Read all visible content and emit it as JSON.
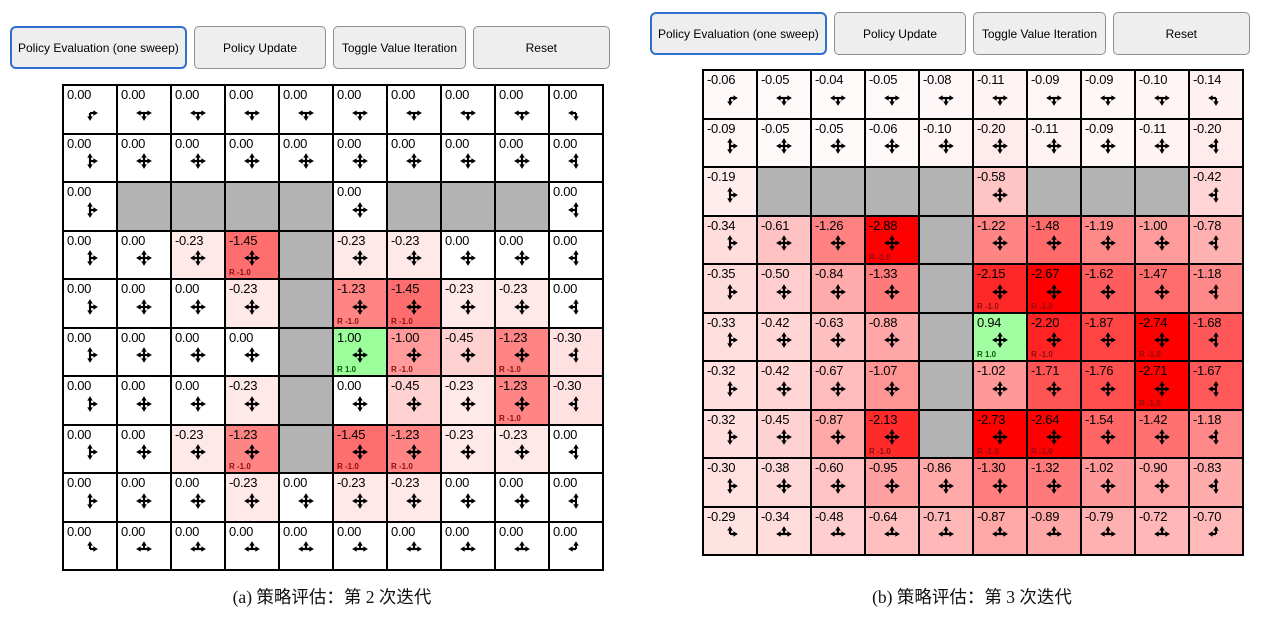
{
  "toolbar": {
    "buttons": [
      "Policy Evaluation (one sweep)",
      "Policy Update",
      "Toggle Value Iteration",
      "Reset"
    ],
    "active_index": 0
  },
  "colors": {
    "active_button_border": "#2e6fd0",
    "button_bg": "#eeeeee",
    "button_border": "#8f8f8f",
    "wall": "#b3b3b3",
    "grid_line": "#000000",
    "reward_negative_text": "#8b0e0e",
    "reward_positive_text": "#0e5a0e",
    "value_color_scale": 100
  },
  "panels": [
    {
      "caption": "(a) 策略评估：第 2 次迭代",
      "grid": {
        "rows": 10,
        "cols": 10,
        "cells": [
          [
            [
              "0.00",
              "rd"
            ],
            [
              "0.00",
              "lrd"
            ],
            [
              "0.00",
              "lrd"
            ],
            [
              "0.00",
              "lrd"
            ],
            [
              "0.00",
              "lrd"
            ],
            [
              "0.00",
              "lrd"
            ],
            [
              "0.00",
              "lrd"
            ],
            [
              "0.00",
              "lrd"
            ],
            [
              "0.00",
              "lrd"
            ],
            [
              "0.00",
              "ld"
            ]
          ],
          [
            [
              "0.00",
              "urd"
            ],
            [
              "0.00",
              "ulrd"
            ],
            [
              "0.00",
              "ulrd"
            ],
            [
              "0.00",
              "ulrd"
            ],
            [
              "0.00",
              "ulrd"
            ],
            [
              "0.00",
              "ulrd"
            ],
            [
              "0.00",
              "ulrd"
            ],
            [
              "0.00",
              "ulrd"
            ],
            [
              "0.00",
              "ulrd"
            ],
            [
              "0.00",
              "uld"
            ]
          ],
          [
            [
              "0.00",
              "urd"
            ],
            null,
            null,
            null,
            null,
            [
              "0.00",
              "ulrd"
            ],
            null,
            null,
            null,
            [
              "0.00",
              "uld"
            ]
          ],
          [
            [
              "0.00",
              "urd"
            ],
            [
              "0.00",
              "ulrd"
            ],
            [
              "-0.23",
              "ulrd"
            ],
            [
              "-1.45",
              "ulrd",
              "R -1.0"
            ],
            null,
            [
              "-0.23",
              "ulrd"
            ],
            [
              "-0.23",
              "ulrd"
            ],
            [
              "0.00",
              "ulrd"
            ],
            [
              "0.00",
              "ulrd"
            ],
            [
              "0.00",
              "uld"
            ]
          ],
          [
            [
              "0.00",
              "urd"
            ],
            [
              "0.00",
              "ulrd"
            ],
            [
              "0.00",
              "ulrd"
            ],
            [
              "-0.23",
              "ulrd"
            ],
            null,
            [
              "-1.23",
              "ulrd",
              "R -1.0"
            ],
            [
              "-1.45",
              "ulrd",
              "R -1.0"
            ],
            [
              "-0.23",
              "ulrd"
            ],
            [
              "-0.23",
              "ulrd"
            ],
            [
              "0.00",
              "uld"
            ]
          ],
          [
            [
              "0.00",
              "urd"
            ],
            [
              "0.00",
              "ulrd"
            ],
            [
              "0.00",
              "ulrd"
            ],
            [
              "0.00",
              "ulrd"
            ],
            null,
            [
              "1.00",
              "ulrd",
              "R 1.0"
            ],
            [
              "-1.00",
              "ulrd",
              "R -1.0"
            ],
            [
              "-0.45",
              "ulrd"
            ],
            [
              "-1.23",
              "ulrd",
              "R -1.0"
            ],
            [
              "-0.30",
              "uld"
            ]
          ],
          [
            [
              "0.00",
              "urd"
            ],
            [
              "0.00",
              "ulrd"
            ],
            [
              "0.00",
              "ulrd"
            ],
            [
              "-0.23",
              "ulrd"
            ],
            null,
            [
              "0.00",
              "ulrd"
            ],
            [
              "-0.45",
              "ulrd"
            ],
            [
              "-0.23",
              "ulrd"
            ],
            [
              "-1.23",
              "ulrd",
              "R -1.0"
            ],
            [
              "-0.30",
              "uld"
            ]
          ],
          [
            [
              "0.00",
              "urd"
            ],
            [
              "0.00",
              "ulrd"
            ],
            [
              "-0.23",
              "ulrd"
            ],
            [
              "-1.23",
              "ulrd",
              "R -1.0"
            ],
            null,
            [
              "-1.45",
              "ulrd",
              "R -1.0"
            ],
            [
              "-1.23",
              "ulrd",
              "R -1.0"
            ],
            [
              "-0.23",
              "ulrd"
            ],
            [
              "-0.23",
              "ulrd"
            ],
            [
              "0.00",
              "uld"
            ]
          ],
          [
            [
              "0.00",
              "urd"
            ],
            [
              "0.00",
              "ulrd"
            ],
            [
              "0.00",
              "ulrd"
            ],
            [
              "-0.23",
              "ulrd"
            ],
            [
              "0.00",
              "ulrd"
            ],
            [
              "-0.23",
              "ulrd"
            ],
            [
              "-0.23",
              "ulrd"
            ],
            [
              "0.00",
              "ulrd"
            ],
            [
              "0.00",
              "ulrd"
            ],
            [
              "0.00",
              "uld"
            ]
          ],
          [
            [
              "0.00",
              "ur"
            ],
            [
              "0.00",
              "lur"
            ],
            [
              "0.00",
              "lur"
            ],
            [
              "0.00",
              "lur"
            ],
            [
              "0.00",
              "lur"
            ],
            [
              "0.00",
              "lur"
            ],
            [
              "0.00",
              "lur"
            ],
            [
              "0.00",
              "lur"
            ],
            [
              "0.00",
              "lur"
            ],
            [
              "0.00",
              "ul"
            ]
          ]
        ]
      }
    },
    {
      "caption": "(b) 策略评估：第 3 次迭代",
      "grid": {
        "rows": 10,
        "cols": 10,
        "cells": [
          [
            [
              "-0.06",
              "rd"
            ],
            [
              "-0.05",
              "lrd"
            ],
            [
              "-0.04",
              "lrd"
            ],
            [
              "-0.05",
              "lrd"
            ],
            [
              "-0.08",
              "lrd"
            ],
            [
              "-0.11",
              "lrd"
            ],
            [
              "-0.09",
              "lrd"
            ],
            [
              "-0.09",
              "lrd"
            ],
            [
              "-0.10",
              "lrd"
            ],
            [
              "-0.14",
              "ld"
            ]
          ],
          [
            [
              "-0.09",
              "urd"
            ],
            [
              "-0.05",
              "ulrd"
            ],
            [
              "-0.05",
              "ulrd"
            ],
            [
              "-0.06",
              "ulrd"
            ],
            [
              "-0.10",
              "ulrd"
            ],
            [
              "-0.20",
              "ulrd"
            ],
            [
              "-0.11",
              "ulrd"
            ],
            [
              "-0.09",
              "ulrd"
            ],
            [
              "-0.11",
              "ulrd"
            ],
            [
              "-0.20",
              "uld"
            ]
          ],
          [
            [
              "-0.19",
              "urd"
            ],
            null,
            null,
            null,
            null,
            [
              "-0.58",
              "ulrd"
            ],
            null,
            null,
            null,
            [
              "-0.42",
              "uld"
            ]
          ],
          [
            [
              "-0.34",
              "urd"
            ],
            [
              "-0.61",
              "ulrd"
            ],
            [
              "-1.26",
              "ulrd"
            ],
            [
              "-2.88",
              "ulrd",
              "R -1.0"
            ],
            null,
            [
              "-1.22",
              "ulrd"
            ],
            [
              "-1.48",
              "ulrd"
            ],
            [
              "-1.19",
              "ulrd"
            ],
            [
              "-1.00",
              "ulrd"
            ],
            [
              "-0.78",
              "uld"
            ]
          ],
          [
            [
              "-0.35",
              "urd"
            ],
            [
              "-0.50",
              "ulrd"
            ],
            [
              "-0.84",
              "ulrd"
            ],
            [
              "-1.33",
              "ulrd"
            ],
            null,
            [
              "-2.15",
              "ulrd",
              "R -1.0"
            ],
            [
              "-2.67",
              "ulrd",
              "R -1.0"
            ],
            [
              "-1.62",
              "ulrd"
            ],
            [
              "-1.47",
              "ulrd"
            ],
            [
              "-1.18",
              "uld"
            ]
          ],
          [
            [
              "-0.33",
              "urd"
            ],
            [
              "-0.42",
              "ulrd"
            ],
            [
              "-0.63",
              "ulrd"
            ],
            [
              "-0.88",
              "ulrd"
            ],
            null,
            [
              "0.94",
              "ulrd",
              "R 1.0"
            ],
            [
              "-2.20",
              "ulrd",
              "R -1.0"
            ],
            [
              "-1.87",
              "ulrd"
            ],
            [
              "-2.74",
              "ulrd",
              "R -1.0"
            ],
            [
              "-1.68",
              "uld"
            ]
          ],
          [
            [
              "-0.32",
              "urd"
            ],
            [
              "-0.42",
              "ulrd"
            ],
            [
              "-0.67",
              "ulrd"
            ],
            [
              "-1.07",
              "ulrd"
            ],
            null,
            [
              "-1.02",
              "ulrd"
            ],
            [
              "-1.71",
              "ulrd"
            ],
            [
              "-1.76",
              "ulrd"
            ],
            [
              "-2.71",
              "ulrd",
              "R -1.0"
            ],
            [
              "-1.67",
              "uld"
            ]
          ],
          [
            [
              "-0.32",
              "urd"
            ],
            [
              "-0.45",
              "ulrd"
            ],
            [
              "-0.87",
              "ulrd"
            ],
            [
              "-2.13",
              "ulrd",
              "R -1.0"
            ],
            null,
            [
              "-2.73",
              "ulrd",
              "R -1.0"
            ],
            [
              "-2.64",
              "ulrd",
              "R -1.0"
            ],
            [
              "-1.54",
              "ulrd"
            ],
            [
              "-1.42",
              "ulrd"
            ],
            [
              "-1.18",
              "uld"
            ]
          ],
          [
            [
              "-0.30",
              "urd"
            ],
            [
              "-0.38",
              "ulrd"
            ],
            [
              "-0.60",
              "ulrd"
            ],
            [
              "-0.95",
              "ulrd"
            ],
            [
              "-0.86",
              "ulrd"
            ],
            [
              "-1.30",
              "ulrd"
            ],
            [
              "-1.32",
              "ulrd"
            ],
            [
              "-1.02",
              "ulrd"
            ],
            [
              "-0.90",
              "ulrd"
            ],
            [
              "-0.83",
              "uld"
            ]
          ],
          [
            [
              "-0.29",
              "ur"
            ],
            [
              "-0.34",
              "lur"
            ],
            [
              "-0.48",
              "lur"
            ],
            [
              "-0.64",
              "lur"
            ],
            [
              "-0.71",
              "lur"
            ],
            [
              "-0.87",
              "lur"
            ],
            [
              "-0.89",
              "lur"
            ],
            [
              "-0.79",
              "lur"
            ],
            [
              "-0.72",
              "lur"
            ],
            [
              "-0.70",
              "ul"
            ]
          ]
        ]
      }
    }
  ]
}
